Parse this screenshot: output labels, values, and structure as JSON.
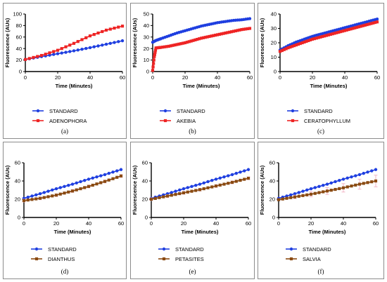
{
  "colors": {
    "standard": "#1f3fe0",
    "red": "#ee2424",
    "brown": "#8a4a12",
    "error_bar": "#f2b6c6",
    "panel_border": "#8c8c8c"
  },
  "chart_data": [
    {
      "type": "line",
      "caption": "(a)",
      "xlabel": "Time (Minutes)",
      "ylabel": "Fluorescence (AUs)",
      "xlim": [
        0,
        60
      ],
      "ylim": [
        0,
        100
      ],
      "xticks": [
        "0",
        "20",
        "40",
        "60"
      ],
      "yticks": [
        "0",
        "20",
        "40",
        "60",
        "80",
        "100"
      ],
      "legend_position": "bottom",
      "series": [
        {
          "name": "STANDARD",
          "color": "standard",
          "marker": "circle",
          "x": [
            0,
            10,
            20,
            30,
            40,
            50,
            60
          ],
          "y": [
            21,
            26,
            31,
            36,
            41.5,
            47.5,
            53.5
          ]
        },
        {
          "name": "ADENOPHORA",
          "color": "red",
          "marker": "square",
          "x": [
            0,
            10,
            20,
            30,
            40,
            50,
            60
          ],
          "y": [
            21,
            28,
            37,
            49,
            62,
            72,
            79
          ]
        }
      ]
    },
    {
      "type": "line",
      "caption": "(b)",
      "xlabel": "Time (Minutes)",
      "ylabel": "Fluorescence (AUs)",
      "xlim": [
        0,
        60
      ],
      "ylim": [
        0,
        50
      ],
      "xticks": [
        "0",
        "20",
        "40",
        "60"
      ],
      "yticks": [
        "0",
        "10",
        "20",
        "30",
        "40",
        "50"
      ],
      "legend_position": "bottom",
      "series": [
        {
          "name": "STANDARD",
          "color": "standard",
          "marker": "circle",
          "x": [
            0,
            2,
            5,
            10,
            15,
            20,
            25,
            30,
            35,
            40,
            45,
            50,
            55,
            60
          ],
          "y": [
            25.5,
            27,
            28.5,
            31,
            33.5,
            35.5,
            37.5,
            39.5,
            41,
            42.5,
            43.5,
            44.5,
            45,
            46
          ]
        },
        {
          "name": "AKEBIA",
          "color": "red",
          "marker": "square",
          "x": [
            0,
            1,
            2,
            5,
            10,
            15,
            20,
            25,
            30,
            35,
            40,
            45,
            50,
            55,
            60
          ],
          "y": [
            1,
            13,
            20.5,
            21,
            22,
            23.5,
            25,
            27,
            29,
            30.5,
            32,
            33.5,
            35,
            36.5,
            37.5
          ]
        }
      ]
    },
    {
      "type": "line",
      "caption": "(c)",
      "xlabel": "Time (Minutes)",
      "ylabel": "Fluorescence (AUs)",
      "xlim": [
        0,
        60
      ],
      "ylim": [
        0,
        40
      ],
      "xticks": [
        "0",
        "20",
        "40",
        "60"
      ],
      "yticks": [
        "0",
        "10",
        "20",
        "30",
        "40"
      ],
      "legend_position": "bottom",
      "series": [
        {
          "name": "STANDARD",
          "color": "standard",
          "marker": "circle",
          "x": [
            0,
            5,
            10,
            15,
            20,
            25,
            30,
            35,
            40,
            45,
            50,
            55,
            60
          ],
          "y": [
            15,
            18,
            20.5,
            22.5,
            24.5,
            26,
            27.5,
            29,
            30.5,
            32,
            33.5,
            35,
            36.5
          ]
        },
        {
          "name": "CERATOPHYLLUM",
          "color": "red",
          "marker": "square",
          "x": [
            0,
            5,
            10,
            15,
            20,
            25,
            30,
            35,
            40,
            45,
            50,
            55,
            60
          ],
          "y": [
            14,
            16.5,
            18.5,
            20.5,
            22.5,
            24,
            25.5,
            27,
            28.5,
            30,
            31.5,
            33,
            34.5
          ]
        }
      ]
    },
    {
      "type": "line",
      "caption": "(d)",
      "xlabel": "Time (Minutes)",
      "ylabel": "Fluorescence (AUs)",
      "xlim": [
        0,
        60
      ],
      "ylim": [
        0,
        60
      ],
      "xticks": [
        "0",
        "20",
        "40",
        "60"
      ],
      "yticks": [
        "0",
        "20",
        "40",
        "60"
      ],
      "legend_position": "bottom",
      "series": [
        {
          "name": "STANDARD",
          "color": "standard",
          "marker": "circle",
          "x": [
            0,
            10,
            20,
            30,
            40,
            50,
            60
          ],
          "y": [
            21,
            26,
            31.5,
            36.5,
            42,
            47,
            52.5
          ]
        },
        {
          "name": "DIANTHUS",
          "color": "brown",
          "marker": "square",
          "error": 1.5,
          "x": [
            0,
            10,
            20,
            30,
            40,
            50,
            60
          ],
          "y": [
            18.5,
            21,
            24.5,
            29,
            34,
            39.5,
            45.5
          ]
        }
      ]
    },
    {
      "type": "line",
      "caption": "(e)",
      "xlabel": "Time (Minutes)",
      "ylabel": "Fluorescence (AUs)",
      "xlim": [
        0,
        60
      ],
      "ylim": [
        0,
        60
      ],
      "xticks": [
        "0",
        "20",
        "40",
        "60"
      ],
      "yticks": [
        "0",
        "20",
        "40",
        "60"
      ],
      "legend_position": "bottom",
      "series": [
        {
          "name": "STANDARD",
          "color": "standard",
          "marker": "circle",
          "x": [
            0,
            10,
            20,
            30,
            40,
            50,
            60
          ],
          "y": [
            21,
            26,
            31.5,
            36.5,
            42,
            47,
            52.5
          ]
        },
        {
          "name": "PETASITES",
          "color": "brown",
          "marker": "square",
          "error": 1.5,
          "x": [
            0,
            10,
            20,
            30,
            40,
            50,
            60
          ],
          "y": [
            20,
            23.5,
            27,
            30.5,
            34.5,
            38.5,
            43
          ]
        }
      ]
    },
    {
      "type": "line",
      "caption": "(f)",
      "xlabel": "Time (Minutes)",
      "ylabel": "Fluorescence (AUs)",
      "xlim": [
        0,
        60
      ],
      "ylim": [
        0,
        60
      ],
      "xticks": [
        "0",
        "20",
        "40",
        "60"
      ],
      "yticks": [
        "0",
        "20",
        "40",
        "60"
      ],
      "legend_position": "bottom",
      "series": [
        {
          "name": "STANDARD",
          "color": "standard",
          "marker": "circle",
          "x": [
            0,
            10,
            20,
            30,
            40,
            50,
            60
          ],
          "y": [
            21,
            26,
            31.5,
            36.5,
            42,
            47,
            52.5
          ]
        },
        {
          "name": "SALVIA",
          "color": "brown",
          "marker": "square",
          "error_growth": true,
          "x": [
            0,
            10,
            20,
            30,
            40,
            50,
            60
          ],
          "y": [
            19.5,
            22.5,
            25.5,
            29,
            32.5,
            36.5,
            40
          ]
        }
      ]
    }
  ]
}
